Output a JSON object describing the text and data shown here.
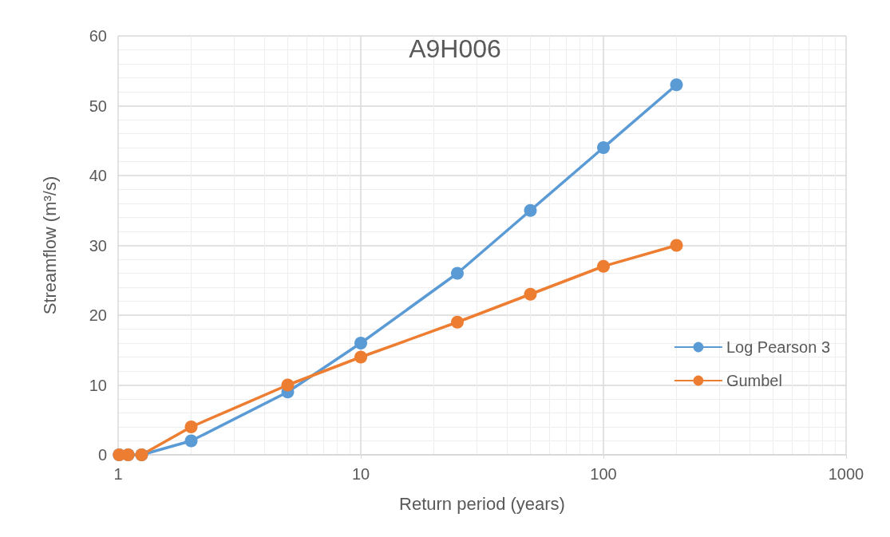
{
  "chart_data": {
    "type": "line",
    "title": "A9H006",
    "xlabel": "Return period (years)",
    "ylabel": "Streamflow (m³/s)",
    "log": "x",
    "xlim": [
      1,
      1000
    ],
    "xticks": [
      1,
      10,
      100,
      1000
    ],
    "ylim": [
      0,
      60
    ],
    "yticks": [
      0,
      10,
      20,
      30,
      40,
      50,
      60
    ],
    "grid": true,
    "legend": "right",
    "marker": "circle",
    "line_style": "solid",
    "series": [
      {
        "name": "Log Pearson 3",
        "color": "#5b9bd5",
        "x": [
          1.01,
          1.1,
          1.25,
          2,
          5,
          10,
          25,
          50,
          100,
          200
        ],
        "values": [
          0,
          0,
          0,
          2,
          9,
          16,
          26,
          35,
          44,
          53
        ]
      },
      {
        "name": "Gumbel",
        "color": "#ed7d31",
        "x": [
          1.01,
          1.1,
          1.25,
          2,
          5,
          10,
          25,
          50,
          100,
          200
        ],
        "values": [
          0,
          0,
          0,
          4,
          10,
          14,
          19,
          23,
          27,
          30
        ]
      }
    ]
  }
}
